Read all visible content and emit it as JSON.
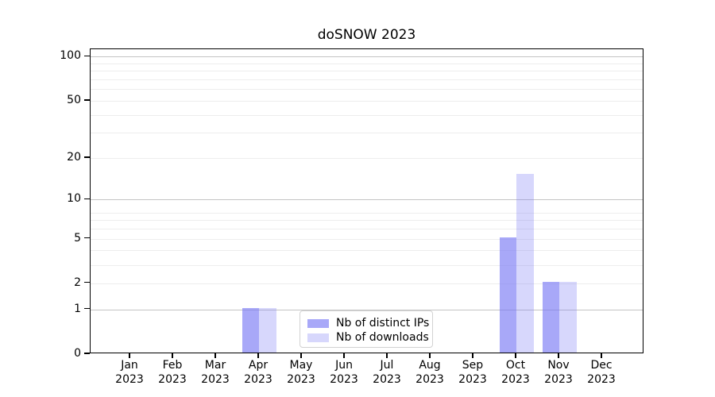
{
  "chart": {
    "background": "#ffffff",
    "spine_color": "#000000",
    "major_grid_color": "#c4c4c4",
    "minor_grid_color": "#ededed"
  },
  "chart_data": {
    "type": "bar",
    "title": "doSNOW 2023",
    "xlabel": "",
    "ylabel": "",
    "categories": [
      "Jan 2023",
      "Feb 2023",
      "Mar 2023",
      "Apr 2023",
      "May 2023",
      "Jun 2023",
      "Jul 2023",
      "Aug 2023",
      "Sep 2023",
      "Oct 2023",
      "Nov 2023",
      "Dec 2023"
    ],
    "series": [
      {
        "name": "Nb of distinct IPs",
        "color": "rgba(122,122,245,0.65)",
        "values": [
          0,
          0,
          0,
          1,
          0,
          0,
          0,
          0,
          0,
          5,
          2,
          0
        ]
      },
      {
        "name": "Nb of downloads",
        "color": "rgba(122,122,245,0.30)",
        "values": [
          0,
          0,
          0,
          1,
          0,
          0,
          0,
          0,
          0,
          15,
          2,
          0
        ]
      }
    ],
    "yscale": "log1p",
    "ylim": [
      0,
      112
    ],
    "yticks": [
      0,
      1,
      2,
      5,
      10,
      20,
      50,
      100
    ],
    "grid": {
      "major": [
        1,
        10,
        100
      ],
      "minor": [
        2,
        3,
        4,
        5,
        6,
        7,
        8,
        20,
        30,
        40,
        50,
        60,
        70,
        80,
        90
      ]
    },
    "legend_position": "lower center"
  }
}
